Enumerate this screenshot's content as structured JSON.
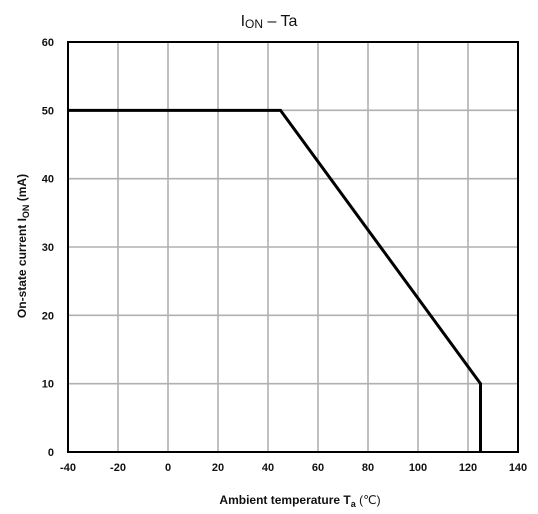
{
  "chart_data": {
    "type": "line",
    "title": "I",
    "title_sub": "ON",
    "title_suffix": " – Ta",
    "xlabel": "Ambient temperature   T",
    "xlabel_sub": "a",
    "xlabel_unit": "  (℃)",
    "ylabel": "On-state current  I",
    "ylabel_sub": "ON",
    "ylabel_unit": "  (mA)",
    "xlim": [
      -40,
      140
    ],
    "ylim": [
      0,
      60
    ],
    "x_ticks": [
      "-40",
      "-20",
      "0",
      "20",
      "40",
      "60",
      "80",
      "100",
      "120",
      "140"
    ],
    "y_ticks": [
      "0",
      "10",
      "20",
      "30",
      "40",
      "50",
      "60"
    ],
    "grid": true,
    "series": [
      {
        "x": [
          -40,
          45,
          125,
          125
        ],
        "y": [
          50,
          50,
          10,
          0
        ]
      }
    ],
    "colors": {
      "line": "#000000",
      "grid": "#b0b0b0",
      "frame": "#000000"
    }
  }
}
